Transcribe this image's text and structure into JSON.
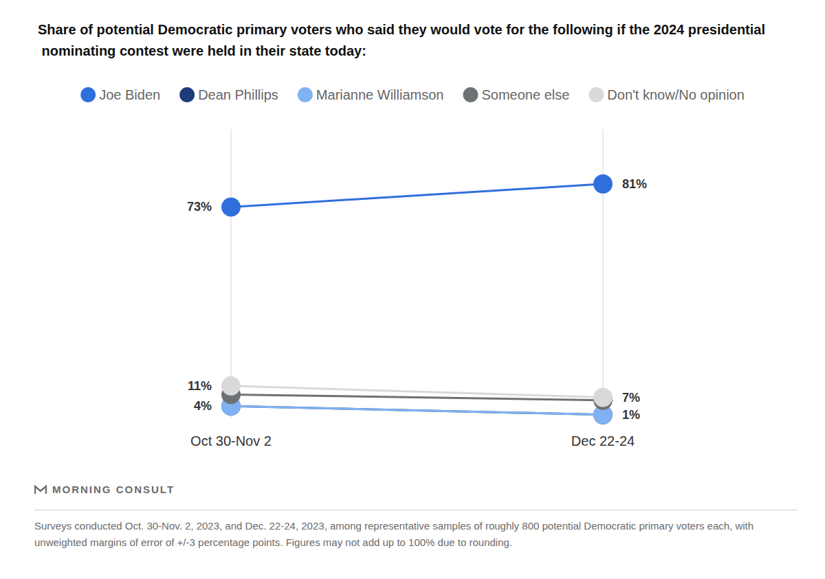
{
  "chart_data": {
    "type": "line",
    "title": "Share of potential Democratic primary voters who said they would vote for the following if the 2024 presidential nominating contest were held in their state today:",
    "categories": [
      "Oct 30-Nov 2",
      "Dec 22-24"
    ],
    "series": [
      {
        "name": "Joe Biden",
        "color": "#2f6fdc",
        "values": [
          73,
          81
        ],
        "value_labels": [
          "73%",
          "81%"
        ]
      },
      {
        "name": "Dean Phillips",
        "color": "#1c3b7a",
        "values": [
          4,
          1
        ]
      },
      {
        "name": "Marianne Williamson",
        "color": "#80b1f2",
        "values": [
          4,
          1
        ],
        "value_labels": [
          "4%",
          "1%"
        ]
      },
      {
        "name": "Someone else",
        "color": "#6c7273",
        "values": [
          8,
          6
        ]
      },
      {
        "name": "Don't know/No opinion",
        "color": "#d9d9d9",
        "values": [
          11,
          7
        ],
        "value_labels": [
          "11%",
          "7%"
        ]
      }
    ],
    "ylim": [
      0,
      100
    ],
    "tick_labels": "x",
    "grid": true,
    "legend": "top",
    "data_labels": true,
    "marker": "circle",
    "line_style": "solid",
    "source": "MORNING CONSULT",
    "note": "Surveys conducted Oct. 30-Nov. 2, 2023, and Dec. 22-24, 2023, among representative samples of roughly 800 potential Democratic primary voters each, with unweighted margins of error of +/-3 percentage points. Figures may not add up to 100% due to rounding."
  }
}
